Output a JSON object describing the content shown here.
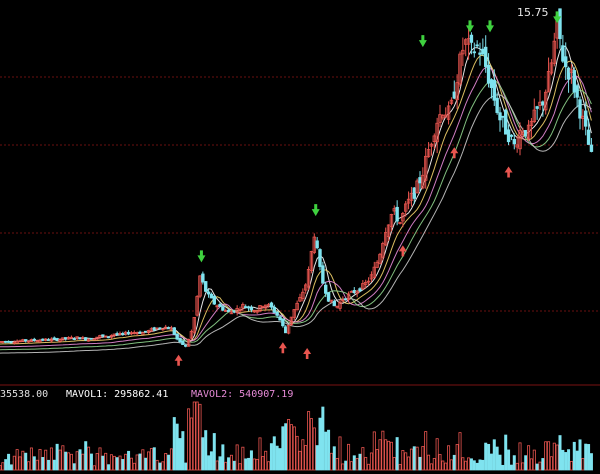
{
  "chart_data": {
    "type": "candlestick",
    "price_label": "15.75",
    "volume_labels": {
      "vol": "35538.00",
      "mavol1": "MAVOL1: 295862.41",
      "mavol2": "MAVOL2: 540907.19"
    },
    "colors": {
      "background": "#000000",
      "up": "#e8554f",
      "down": "#7fe3ef",
      "ma_lines": [
        "#ffffff",
        "#f3d36b",
        "#e78bd8",
        "#8fd48d",
        "#c8c8c8"
      ],
      "buy_marker": "#e8554f",
      "sell_marker": "#3fd13f",
      "grid": "#7a1212"
    },
    "close_path": [
      [
        0,
        1.7
      ],
      [
        10,
        1.72
      ],
      [
        20,
        1.75
      ],
      [
        30,
        1.78
      ],
      [
        40,
        1.8
      ],
      [
        50,
        1.86
      ],
      [
        55,
        1.88
      ],
      [
        60,
        1.82
      ],
      [
        65,
        1.85
      ],
      [
        70,
        1.95
      ],
      [
        75,
        1.9
      ],
      [
        80,
        2.05
      ],
      [
        85,
        2.0
      ],
      [
        90,
        2.1
      ],
      [
        95,
        2.12
      ],
      [
        100,
        2.1
      ],
      [
        105,
        2.2
      ],
      [
        110,
        2.3
      ],
      [
        115,
        2.35
      ],
      [
        120,
        2.28
      ],
      [
        125,
        1.7
      ],
      [
        130,
        1.5
      ],
      [
        135,
        2.3
      ],
      [
        140,
        4.6
      ],
      [
        145,
        3.8
      ],
      [
        150,
        3.4
      ],
      [
        155,
        3.2
      ],
      [
        160,
        3.0
      ],
      [
        165,
        3.1
      ],
      [
        170,
        3.3
      ],
      [
        175,
        3.2
      ],
      [
        180,
        3.1
      ],
      [
        185,
        3.4
      ],
      [
        190,
        3.2
      ],
      [
        195,
        2.8
      ],
      [
        200,
        2.1
      ],
      [
        205,
        3.0
      ],
      [
        210,
        3.6
      ],
      [
        215,
        4.4
      ],
      [
        220,
        6.5
      ],
      [
        225,
        4.5
      ],
      [
        230,
        3.6
      ],
      [
        235,
        3.2
      ],
      [
        240,
        3.6
      ],
      [
        245,
        3.8
      ],
      [
        250,
        4.0
      ],
      [
        255,
        4.2
      ],
      [
        260,
        4.6
      ],
      [
        265,
        5.4
      ],
      [
        270,
        6.7
      ],
      [
        275,
        7.5
      ],
      [
        280,
        7.0
      ],
      [
        285,
        7.8
      ],
      [
        290,
        8.3
      ],
      [
        295,
        9.0
      ],
      [
        300,
        10.2
      ],
      [
        305,
        11.4
      ],
      [
        310,
        12.0
      ],
      [
        315,
        11.8
      ],
      [
        320,
        13.5
      ],
      [
        325,
        15.0
      ],
      [
        330,
        14.6
      ],
      [
        335,
        14.8
      ],
      [
        340,
        13.9
      ],
      [
        345,
        12.7
      ],
      [
        350,
        11.6
      ],
      [
        355,
        11.0
      ],
      [
        360,
        10.4
      ],
      [
        365,
        11.2
      ],
      [
        370,
        11.0
      ],
      [
        375,
        11.8
      ],
      [
        380,
        12.4
      ],
      [
        385,
        13.6
      ],
      [
        390,
        15.75
      ],
      [
        395,
        14.0
      ],
      [
        400,
        13.5
      ],
      [
        405,
        12.2
      ],
      [
        410,
        11.0
      ],
      [
        415,
        9.6
      ]
    ],
    "ma_offsets": [
      0.0,
      -0.2,
      -0.45,
      -0.7,
      -1.0
    ],
    "sell_markers": [
      [
        141,
        5.35
      ],
      [
        221,
        7.4
      ],
      [
        296,
        14.9
      ],
      [
        329,
        15.55
      ],
      [
        343,
        15.55
      ],
      [
        390,
        15.95
      ]
    ],
    "buy_markers": [
      [
        125,
        0.9
      ],
      [
        198,
        1.45
      ],
      [
        215,
        1.2
      ],
      [
        282,
        5.75
      ],
      [
        318,
        10.1
      ],
      [
        356,
        9.25
      ]
    ],
    "xlim": [
      0,
      420
    ],
    "ylim": [
      0,
      16.5
    ]
  }
}
